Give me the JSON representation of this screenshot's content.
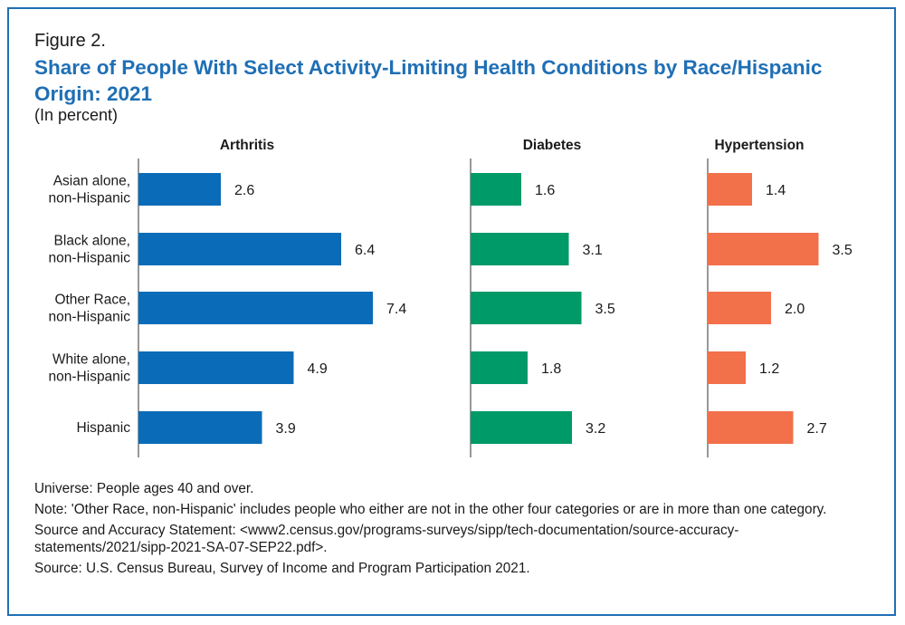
{
  "figure_label": "Figure 2.",
  "title": "Share of People With Select Activity-Limiting Health Conditions by Race/Hispanic Origin: 2021",
  "subtitle": "(In percent)",
  "colors": {
    "frame": "#1f6fb5",
    "title": "#1f6fb5"
  },
  "chart_data": {
    "type": "bar",
    "orientation": "horizontal",
    "title": "Share of People With Select Activity-Limiting Health Conditions by Race/Hispanic Origin: 2021",
    "subtitle": "(In percent)",
    "categories": [
      [
        "Asian alone,",
        "non-Hispanic"
      ],
      [
        "Black alone,",
        "non-Hispanic"
      ],
      [
        "Other Race,",
        "non-Hispanic"
      ],
      [
        "White alone,",
        "non-Hispanic"
      ],
      [
        "Hispanic"
      ]
    ],
    "series": [
      {
        "name": "Arthritis",
        "color": "#0a6cb8",
        "values": [
          2.6,
          6.4,
          7.4,
          4.9,
          3.9
        ],
        "labels": [
          "2.6",
          "6.4",
          "7.4",
          "4.9",
          "3.9"
        ]
      },
      {
        "name": "Diabetes",
        "color": "#009a68",
        "values": [
          1.6,
          3.1,
          3.5,
          1.8,
          3.2
        ],
        "labels": [
          "1.6",
          "3.1",
          "3.5",
          "1.8",
          "3.2"
        ]
      },
      {
        "name": "Hypertension",
        "color": "#f2704a",
        "values": [
          1.4,
          3.5,
          2.0,
          1.2,
          2.7
        ],
        "labels": [
          "1.4",
          "3.5",
          "2.0",
          "1.2",
          "2.7"
        ]
      }
    ],
    "xlabel": "",
    "ylabel": "",
    "xlim": [
      0,
      7.4
    ],
    "grid": false,
    "legend": "none"
  },
  "footer": {
    "universe": "Universe: People ages 40 and over.",
    "note": "Note: 'Other Race, non-Hispanic' includes people who either are not in the other four categories or are in more than one category.",
    "source_accuracy": "Source and Accuracy Statement: <www2.census.gov/programs-surveys/sipp/tech-documentation/source-accuracy-statements/2021/sipp-2021-SA-07-SEP22.pdf>.",
    "source": "Source: U.S. Census Bureau, Survey of Income and Program Participation 2021."
  }
}
